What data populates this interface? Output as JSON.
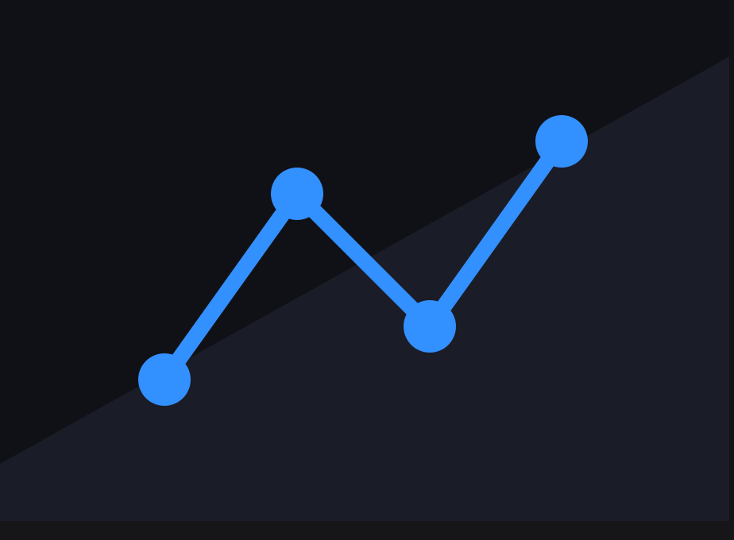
{
  "graphic": {
    "icon": "line-chart-icon",
    "colors": {
      "background_dark": "#101116",
      "background_diagonal": "#1a1c27",
      "line": "#3390ff",
      "nodes": "#3390ff",
      "frame": "#161618"
    }
  }
}
